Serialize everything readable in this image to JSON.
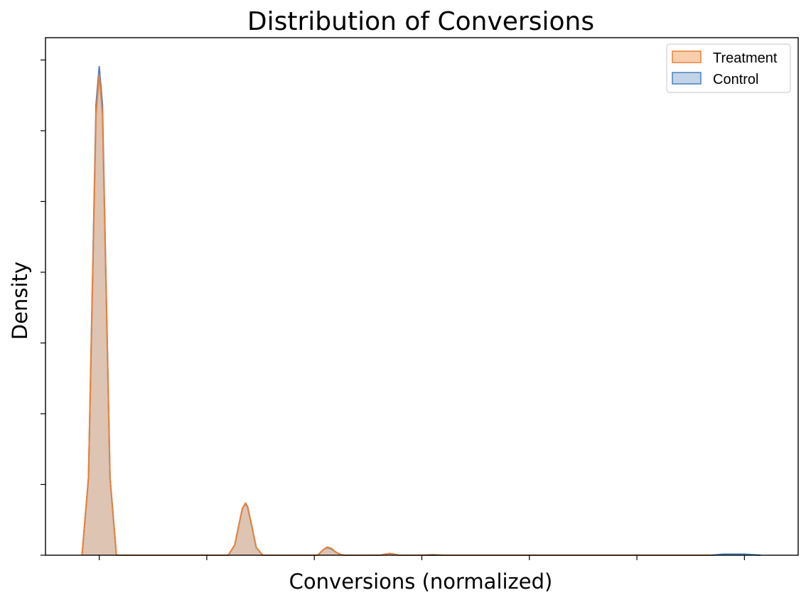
{
  "chart_data": {
    "type": "area",
    "title": "Distribution of Conversions",
    "xlabel": "Conversions (normalized)",
    "ylabel": "Density",
    "xlim": [
      -0.5,
      6.5
    ],
    "ylim": [
      0,
      1.0
    ],
    "x_ticks": [
      0,
      1,
      2,
      3,
      4,
      5,
      6
    ],
    "y_ticks": [
      0,
      0.1367,
      0.2734,
      0.4101,
      0.5468,
      0.6835,
      0.8202,
      0.9569
    ],
    "grid": false,
    "legend": {
      "position": "top-right",
      "entries": [
        {
          "label": "Treatment",
          "series": "treatment"
        },
        {
          "label": "Control",
          "series": "control"
        }
      ]
    },
    "series": [
      {
        "name": "Treatment",
        "key": "treatment",
        "fill": "#f4a66a",
        "stroke": "#e8823a",
        "x": [
          -0.16,
          -0.1,
          -0.06,
          -0.03,
          0.0,
          0.03,
          0.06,
          0.1,
          0.16,
          1.2,
          1.26,
          1.3,
          1.33,
          1.36,
          1.38,
          1.42,
          1.46,
          1.52,
          2.03,
          2.08,
          2.12,
          2.16,
          2.2,
          2.25,
          2.28,
          2.62,
          2.66,
          2.7,
          2.74,
          2.78,
          3.0,
          3.1,
          3.2,
          5.7
        ],
        "y": [
          0.0,
          0.15,
          0.55,
          0.85,
          0.929,
          0.85,
          0.55,
          0.15,
          0.0,
          0.0,
          0.02,
          0.06,
          0.09,
          0.101,
          0.094,
          0.055,
          0.015,
          0.0,
          0.0,
          0.01,
          0.016,
          0.013,
          0.006,
          0.001,
          0.0,
          0.0,
          0.002,
          0.0035,
          0.002,
          0.0,
          0.0,
          0.001,
          0.0,
          0.0
        ]
      },
      {
        "name": "Control",
        "key": "control",
        "fill": "#8eb1d6",
        "stroke": "#4a7fbf",
        "x": [
          -0.16,
          -0.1,
          -0.06,
          -0.03,
          0.0,
          0.03,
          0.06,
          0.1,
          0.16,
          1.2,
          1.26,
          1.3,
          1.33,
          1.36,
          1.38,
          1.42,
          1.46,
          1.52,
          2.03,
          2.08,
          2.12,
          2.16,
          2.2,
          2.25,
          2.28,
          2.62,
          2.66,
          2.7,
          2.74,
          2.78,
          5.7,
          5.8,
          6.0,
          6.15
        ],
        "y": [
          0.0,
          0.15,
          0.56,
          0.87,
          0.944,
          0.87,
          0.56,
          0.15,
          0.0,
          0.0,
          0.02,
          0.06,
          0.09,
          0.1,
          0.093,
          0.055,
          0.015,
          0.0,
          0.0,
          0.01,
          0.015,
          0.012,
          0.006,
          0.001,
          0.0,
          0.0,
          0.002,
          0.003,
          0.002,
          0.0,
          0.0,
          0.002,
          0.002,
          0.0
        ]
      }
    ]
  }
}
